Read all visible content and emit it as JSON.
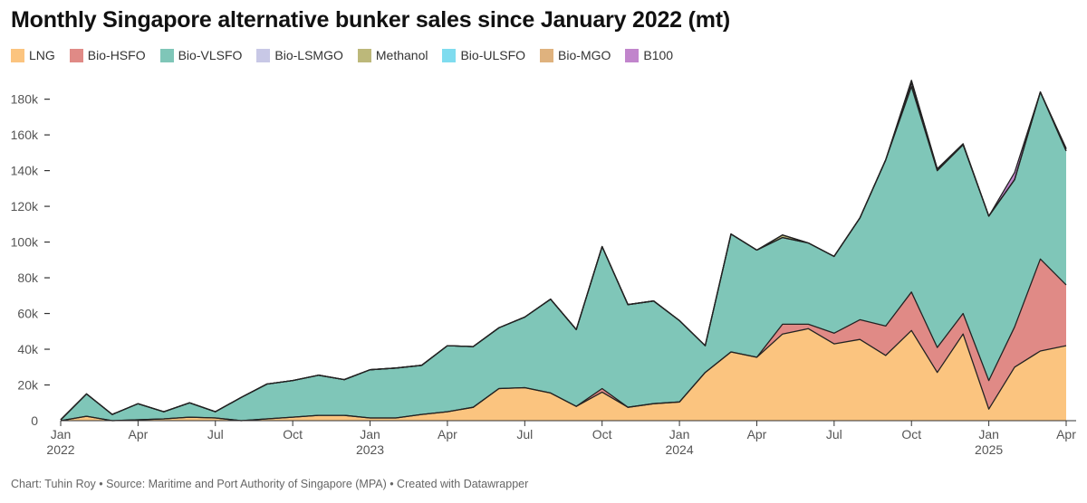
{
  "title": "Monthly Singapore alternative bunker sales since January 2022 (mt)",
  "footer": "Chart: Tuhin Roy • Source: Maritime and Port Authority of Singapore (MPA) • Created with Datawrapper",
  "colors": {
    "LNG": "#fbc47f",
    "Bio-HSFO": "#e08a86",
    "Bio-VLSFO": "#7fc6b8",
    "Bio-LSMGO": "#c8c8e6",
    "Methanol": "#bcb87a",
    "Bio-ULSFO": "#7fdcef",
    "Bio-MGO": "#dfb27e",
    "B100": "#c185cc"
  },
  "chart_data": {
    "type": "area",
    "stacked": true,
    "title": "Monthly Singapore alternative bunker sales since January 2022 (mt)",
    "xlabel": "",
    "ylabel": "",
    "ylim": [
      0,
      195000
    ],
    "yticks": [
      {
        "value": 0,
        "label": "0"
      },
      {
        "value": 20000,
        "label": "20k"
      },
      {
        "value": 40000,
        "label": "40k"
      },
      {
        "value": 60000,
        "label": "60k"
      },
      {
        "value": 80000,
        "label": "80k"
      },
      {
        "value": 100000,
        "label": "100k"
      },
      {
        "value": 120000,
        "label": "120k"
      },
      {
        "value": 140000,
        "label": "140k"
      },
      {
        "value": 160000,
        "label": "160k"
      },
      {
        "value": 180000,
        "label": "180k"
      }
    ],
    "xticks": [
      {
        "index": 0,
        "line1": "Jan",
        "line2": "2022"
      },
      {
        "index": 3,
        "line1": "Apr",
        "line2": ""
      },
      {
        "index": 6,
        "line1": "Jul",
        "line2": ""
      },
      {
        "index": 9,
        "line1": "Oct",
        "line2": ""
      },
      {
        "index": 12,
        "line1": "Jan",
        "line2": "2023"
      },
      {
        "index": 15,
        "line1": "Apr",
        "line2": ""
      },
      {
        "index": 18,
        "line1": "Jul",
        "line2": ""
      },
      {
        "index": 21,
        "line1": "Oct",
        "line2": ""
      },
      {
        "index": 24,
        "line1": "Jan",
        "line2": "2024"
      },
      {
        "index": 27,
        "line1": "Apr",
        "line2": ""
      },
      {
        "index": 30,
        "line1": "Jul",
        "line2": ""
      },
      {
        "index": 33,
        "line1": "Oct",
        "line2": ""
      },
      {
        "index": 36,
        "line1": "Jan",
        "line2": "2025"
      },
      {
        "index": 39,
        "line1": "Apr",
        "line2": ""
      }
    ],
    "months": [
      "2022-01",
      "2022-02",
      "2022-03",
      "2022-04",
      "2022-05",
      "2022-06",
      "2022-07",
      "2022-08",
      "2022-09",
      "2022-10",
      "2022-11",
      "2022-12",
      "2023-01",
      "2023-02",
      "2023-03",
      "2023-04",
      "2023-05",
      "2023-06",
      "2023-07",
      "2023-08",
      "2023-09",
      "2023-10",
      "2023-11",
      "2023-12",
      "2024-01",
      "2024-02",
      "2024-03",
      "2024-04",
      "2024-05",
      "2024-06",
      "2024-07",
      "2024-08",
      "2024-09",
      "2024-10",
      "2024-11",
      "2024-12",
      "2025-01",
      "2025-02",
      "2025-03",
      "2025-04"
    ],
    "series": [
      {
        "name": "LNG",
        "values": [
          0,
          2500,
          0,
          500,
          1000,
          2000,
          1500,
          0,
          1000,
          2000,
          3000,
          3000,
          1500,
          1500,
          3500,
          5000,
          7500,
          18000,
          18500,
          15500,
          8000,
          16000,
          7500,
          9500,
          10500,
          27000,
          38500,
          35500,
          48500,
          51500,
          43000,
          45500,
          36500,
          50500,
          27000,
          48500,
          6500,
          30000,
          39000,
          42000
        ]
      },
      {
        "name": "Bio-HSFO",
        "values": [
          0,
          0,
          0,
          0,
          0,
          0,
          0,
          0,
          0,
          0,
          0,
          0,
          0,
          0,
          0,
          0,
          0,
          0,
          0,
          0,
          0,
          2000,
          0,
          0,
          0,
          0,
          0,
          0,
          5500,
          2500,
          6000,
          11000,
          16500,
          21500,
          14000,
          11500,
          16000,
          22500,
          51500,
          34000
        ]
      },
      {
        "name": "Bio-VLSFO",
        "values": [
          500,
          12500,
          3500,
          9000,
          4000,
          8000,
          3500,
          13000,
          19500,
          20500,
          22500,
          20000,
          27000,
          28000,
          27500,
          37000,
          34000,
          34000,
          39500,
          52500,
          43000,
          79500,
          57500,
          57500,
          45500,
          15000,
          66000,
          60000,
          48500,
          45500,
          43000,
          57000,
          93000,
          115000,
          99000,
          94500,
          92000,
          82500,
          93500,
          75000
        ]
      },
      {
        "name": "Bio-LSMGO",
        "values": [
          0,
          0,
          0,
          0,
          0,
          0,
          0,
          0,
          0,
          0,
          0,
          0,
          0,
          0,
          0,
          0,
          0,
          0,
          0,
          0,
          0,
          0,
          0,
          0,
          0,
          0,
          0,
          0,
          0,
          0,
          0,
          0,
          0,
          2000,
          0,
          0,
          0,
          0,
          0,
          0
        ]
      },
      {
        "name": "Methanol",
        "values": [
          0,
          0,
          0,
          0,
          0,
          0,
          0,
          0,
          0,
          0,
          0,
          0,
          0,
          0,
          0,
          0,
          0,
          0,
          0,
          0,
          0,
          0,
          0,
          0,
          0,
          0,
          0,
          0,
          1500,
          0,
          0,
          0,
          0,
          1500,
          1000,
          500,
          0,
          0,
          0,
          1000
        ]
      },
      {
        "name": "Bio-ULSFO",
        "values": [
          0,
          0,
          0,
          0,
          0,
          0,
          0,
          0,
          0,
          0,
          0,
          0,
          0,
          0,
          0,
          0,
          0,
          0,
          0,
          0,
          0,
          0,
          0,
          0,
          0,
          0,
          0,
          0,
          0,
          0,
          0,
          0,
          0,
          0,
          0,
          0,
          0,
          0,
          0,
          0
        ]
      },
      {
        "name": "Bio-MGO",
        "values": [
          0,
          0,
          0,
          0,
          0,
          0,
          0,
          0,
          0,
          0,
          0,
          0,
          0,
          0,
          0,
          0,
          0,
          0,
          0,
          0,
          0,
          0,
          0,
          0,
          0,
          0,
          0,
          0,
          0,
          0,
          0,
          0,
          0,
          0,
          0,
          0,
          0,
          0,
          0,
          0
        ]
      },
      {
        "name": "B100",
        "values": [
          0,
          0,
          0,
          0,
          0,
          0,
          0,
          0,
          0,
          0,
          0,
          0,
          0,
          0,
          0,
          0,
          0,
          0,
          0,
          0,
          0,
          0,
          0,
          0,
          0,
          0,
          0,
          0,
          0,
          0,
          0,
          0,
          0,
          0,
          0,
          0,
          0,
          4000,
          0,
          500
        ]
      }
    ],
    "legend": [
      "LNG",
      "Bio-HSFO",
      "Bio-VLSFO",
      "Bio-LSMGO",
      "Methanol",
      "Bio-ULSFO",
      "Bio-MGO",
      "B100"
    ],
    "legend_position": "top-left",
    "grid": false
  }
}
